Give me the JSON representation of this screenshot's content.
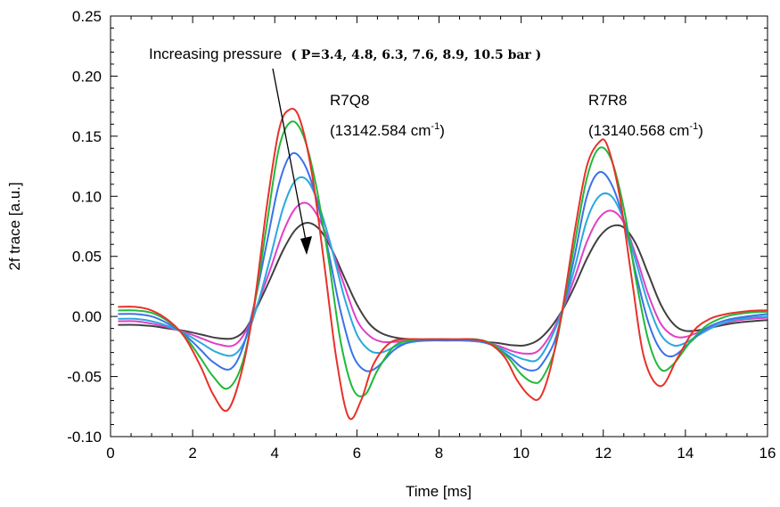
{
  "chart_data": {
    "type": "line",
    "xlabel": "Time [ms]",
    "ylabel": "2f trace [a.u.]",
    "xlim": [
      0,
      16
    ],
    "ylim": [
      -0.1,
      0.25
    ],
    "x_ticks": [
      "0",
      "2",
      "4",
      "6",
      "8",
      "10",
      "12",
      "14",
      "16"
    ],
    "y_ticks": [
      "-0.10",
      "-0.05",
      "0.00",
      "0.05",
      "0.10",
      "0.15",
      "0.20",
      "0.25"
    ],
    "grid": false,
    "annotations": {
      "pressure_prefix": "Increasing pressure",
      "pressure_values": "( P=3.4, 4.8, 6.3, 7.6, 8.9, 10.5 bar )",
      "line1_name": "R7Q8",
      "line1_wavenumber": "(13142.584 cm",
      "line2_name": "R7R8",
      "line2_wavenumber": "(13140.568 cm",
      "cm_suffix": ")",
      "cm_superscript": "-1"
    },
    "series": [
      {
        "color": "#e8312a",
        "x": [
          0.2,
          0.6,
          1.0,
          1.4,
          1.8,
          2.2,
          2.5,
          2.85,
          3.2,
          3.5,
          3.8,
          4.1,
          4.35,
          4.6,
          4.9,
          5.2,
          5.5,
          5.8,
          6.1,
          6.4,
          6.8,
          7.2,
          7.6,
          8.0,
          8.4,
          8.8,
          9.2,
          9.6,
          9.9,
          10.2,
          10.45,
          10.7,
          11.0,
          11.3,
          11.6,
          11.9,
          12.1,
          12.4,
          12.7,
          13.0,
          13.4,
          13.8,
          14.2,
          14.6,
          15.0,
          15.4,
          15.8,
          16.0
        ],
        "y": [
          0.008,
          0.008,
          0.005,
          -0.003,
          -0.017,
          -0.042,
          -0.065,
          -0.078,
          -0.045,
          0.01,
          0.09,
          0.155,
          0.172,
          0.165,
          0.12,
          0.045,
          -0.035,
          -0.084,
          -0.07,
          -0.04,
          -0.022,
          -0.019,
          -0.019,
          -0.019,
          -0.019,
          -0.019,
          -0.022,
          -0.034,
          -0.053,
          -0.066,
          -0.068,
          -0.045,
          0.005,
          0.07,
          0.125,
          0.145,
          0.142,
          0.1,
          0.03,
          -0.035,
          -0.058,
          -0.035,
          -0.012,
          -0.002,
          0.002,
          0.004,
          0.005,
          0.005
        ]
      },
      {
        "color": "#22b83a",
        "x": [
          0.2,
          0.6,
          1.0,
          1.4,
          1.8,
          2.2,
          2.5,
          2.85,
          3.2,
          3.5,
          3.8,
          4.1,
          4.4,
          4.7,
          5.0,
          5.3,
          5.6,
          5.9,
          6.2,
          6.5,
          6.9,
          7.3,
          7.7,
          8.1,
          8.5,
          8.9,
          9.3,
          9.7,
          10.0,
          10.3,
          10.5,
          10.8,
          11.0,
          11.3,
          11.6,
          11.9,
          12.2,
          12.5,
          12.8,
          13.1,
          13.4,
          13.7,
          14.1,
          14.5,
          15.0,
          15.5,
          16.0
        ],
        "y": [
          0.005,
          0.005,
          0.003,
          -0.004,
          -0.016,
          -0.035,
          -0.05,
          -0.06,
          -0.04,
          0.008,
          0.075,
          0.14,
          0.162,
          0.15,
          0.11,
          0.05,
          -0.02,
          -0.06,
          -0.065,
          -0.045,
          -0.025,
          -0.02,
          -0.019,
          -0.019,
          -0.019,
          -0.019,
          -0.023,
          -0.035,
          -0.048,
          -0.055,
          -0.052,
          -0.03,
          0.003,
          0.06,
          0.115,
          0.14,
          0.13,
          0.09,
          0.03,
          -0.02,
          -0.044,
          -0.04,
          -0.022,
          -0.008,
          0.0,
          0.003,
          0.004
        ]
      },
      {
        "color": "#3a72e8",
        "x": [
          0.2,
          0.6,
          1.0,
          1.4,
          1.8,
          2.2,
          2.5,
          2.9,
          3.2,
          3.5,
          3.8,
          4.1,
          4.4,
          4.7,
          5.0,
          5.3,
          5.6,
          5.9,
          6.2,
          6.5,
          6.9,
          7.3,
          7.7,
          8.1,
          8.5,
          8.9,
          9.3,
          9.7,
          10.0,
          10.3,
          10.5,
          10.8,
          11.0,
          11.3,
          11.6,
          11.9,
          12.2,
          12.5,
          12.8,
          13.1,
          13.4,
          13.7,
          14.1,
          14.5,
          15.0,
          15.5,
          16.0
        ],
        "y": [
          0.002,
          0.002,
          0.0,
          -0.006,
          -0.015,
          -0.028,
          -0.038,
          -0.044,
          -0.028,
          0.01,
          0.06,
          0.11,
          0.135,
          0.128,
          0.1,
          0.055,
          0.005,
          -0.032,
          -0.045,
          -0.042,
          -0.028,
          -0.021,
          -0.02,
          -0.02,
          -0.02,
          -0.02,
          -0.024,
          -0.033,
          -0.042,
          -0.045,
          -0.04,
          -0.022,
          0.003,
          0.05,
          0.1,
          0.12,
          0.11,
          0.08,
          0.035,
          -0.005,
          -0.028,
          -0.033,
          -0.022,
          -0.01,
          -0.003,
          0.0,
          0.002
        ]
      },
      {
        "color": "#2aa8de",
        "x": [
          0.2,
          0.6,
          1.0,
          1.4,
          1.8,
          2.2,
          2.6,
          3.0,
          3.3,
          3.6,
          3.9,
          4.2,
          4.5,
          4.8,
          5.1,
          5.4,
          5.7,
          6.0,
          6.3,
          6.6,
          7.0,
          7.4,
          7.8,
          8.2,
          8.6,
          9.0,
          9.4,
          9.8,
          10.1,
          10.4,
          10.7,
          11.0,
          11.3,
          11.6,
          11.9,
          12.2,
          12.5,
          12.8,
          13.1,
          13.4,
          13.7,
          14.0,
          14.4,
          14.8,
          15.3,
          16.0
        ],
        "y": [
          -0.002,
          -0.002,
          -0.004,
          -0.008,
          -0.014,
          -0.022,
          -0.03,
          -0.032,
          -0.018,
          0.012,
          0.05,
          0.09,
          0.113,
          0.113,
          0.09,
          0.055,
          0.015,
          -0.015,
          -0.028,
          -0.03,
          -0.024,
          -0.021,
          -0.02,
          -0.02,
          -0.02,
          -0.021,
          -0.025,
          -0.032,
          -0.036,
          -0.036,
          -0.02,
          0.005,
          0.04,
          0.08,
          0.1,
          0.1,
          0.08,
          0.045,
          0.01,
          -0.015,
          -0.024,
          -0.022,
          -0.014,
          -0.007,
          -0.002,
          0.0
        ]
      },
      {
        "color": "#e040c8",
        "x": [
          0.2,
          0.6,
          1.0,
          1.4,
          1.8,
          2.2,
          2.6,
          3.0,
          3.3,
          3.6,
          3.9,
          4.2,
          4.5,
          4.8,
          5.1,
          5.4,
          5.7,
          6.0,
          6.3,
          6.6,
          7.0,
          7.4,
          7.8,
          8.2,
          8.6,
          9.0,
          9.4,
          9.8,
          10.1,
          10.4,
          10.7,
          11.0,
          11.3,
          11.6,
          11.9,
          12.2,
          12.5,
          12.8,
          13.1,
          13.4,
          13.7,
          14.0,
          14.4,
          14.8,
          15.3,
          16.0
        ],
        "y": [
          -0.004,
          -0.004,
          -0.006,
          -0.009,
          -0.013,
          -0.018,
          -0.023,
          -0.024,
          -0.012,
          0.012,
          0.04,
          0.07,
          0.09,
          0.094,
          0.08,
          0.055,
          0.025,
          -0.003,
          -0.016,
          -0.021,
          -0.021,
          -0.02,
          -0.02,
          -0.02,
          -0.02,
          -0.021,
          -0.024,
          -0.029,
          -0.031,
          -0.029,
          -0.016,
          0.005,
          0.032,
          0.062,
          0.082,
          0.088,
          0.078,
          0.05,
          0.018,
          -0.006,
          -0.016,
          -0.017,
          -0.012,
          -0.007,
          -0.003,
          -0.001
        ]
      },
      {
        "color": "#404040",
        "x": [
          0.2,
          0.6,
          1.0,
          1.4,
          1.8,
          2.2,
          2.6,
          3.0,
          3.3,
          3.6,
          3.9,
          4.2,
          4.5,
          4.8,
          5.1,
          5.4,
          5.7,
          6.0,
          6.3,
          6.6,
          7.0,
          7.4,
          7.8,
          8.2,
          8.6,
          9.0,
          9.4,
          9.8,
          10.1,
          10.4,
          10.7,
          11.0,
          11.3,
          11.6,
          11.9,
          12.2,
          12.5,
          12.8,
          13.1,
          13.4,
          13.7,
          14.0,
          14.4,
          14.8,
          15.3,
          16.0
        ],
        "y": [
          -0.007,
          -0.007,
          -0.008,
          -0.01,
          -0.012,
          -0.015,
          -0.018,
          -0.018,
          -0.01,
          0.01,
          0.032,
          0.055,
          0.072,
          0.078,
          0.072,
          0.055,
          0.032,
          0.01,
          -0.006,
          -0.014,
          -0.018,
          -0.019,
          -0.019,
          -0.019,
          -0.02,
          -0.021,
          -0.022,
          -0.024,
          -0.024,
          -0.02,
          -0.01,
          0.005,
          0.025,
          0.048,
          0.066,
          0.075,
          0.074,
          0.06,
          0.035,
          0.01,
          -0.006,
          -0.012,
          -0.011,
          -0.008,
          -0.005,
          -0.003
        ]
      }
    ]
  }
}
